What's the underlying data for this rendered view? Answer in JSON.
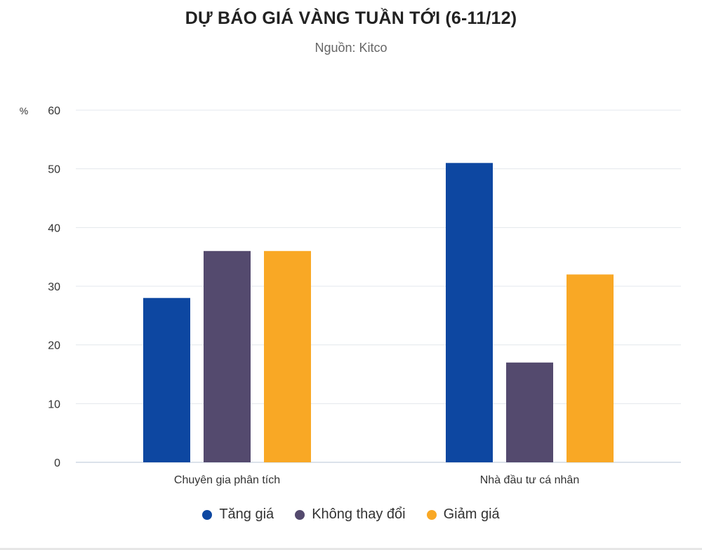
{
  "chart_data": {
    "type": "bar",
    "title": "DỰ BÁO GIÁ VÀNG TUẦN TỚI (6-11/12)",
    "subtitle": "Nguồn: Kitco",
    "ylabel": "%",
    "ylim": [
      0,
      60
    ],
    "yticks": [
      0,
      10,
      20,
      30,
      40,
      50,
      60
    ],
    "categories": [
      "Chuyên gia phân tích",
      "Nhà đầu tư cá nhân"
    ],
    "series": [
      {
        "name": "Tăng giá",
        "values": [
          28,
          51
        ],
        "color": "#0d47a1"
      },
      {
        "name": "Không thay đổi",
        "values": [
          36,
          17
        ],
        "color": "#544a6e"
      },
      {
        "name": "Giảm giá",
        "values": [
          36,
          32
        ],
        "color": "#f9a825"
      }
    ],
    "grid": true,
    "legend": "bottom"
  }
}
